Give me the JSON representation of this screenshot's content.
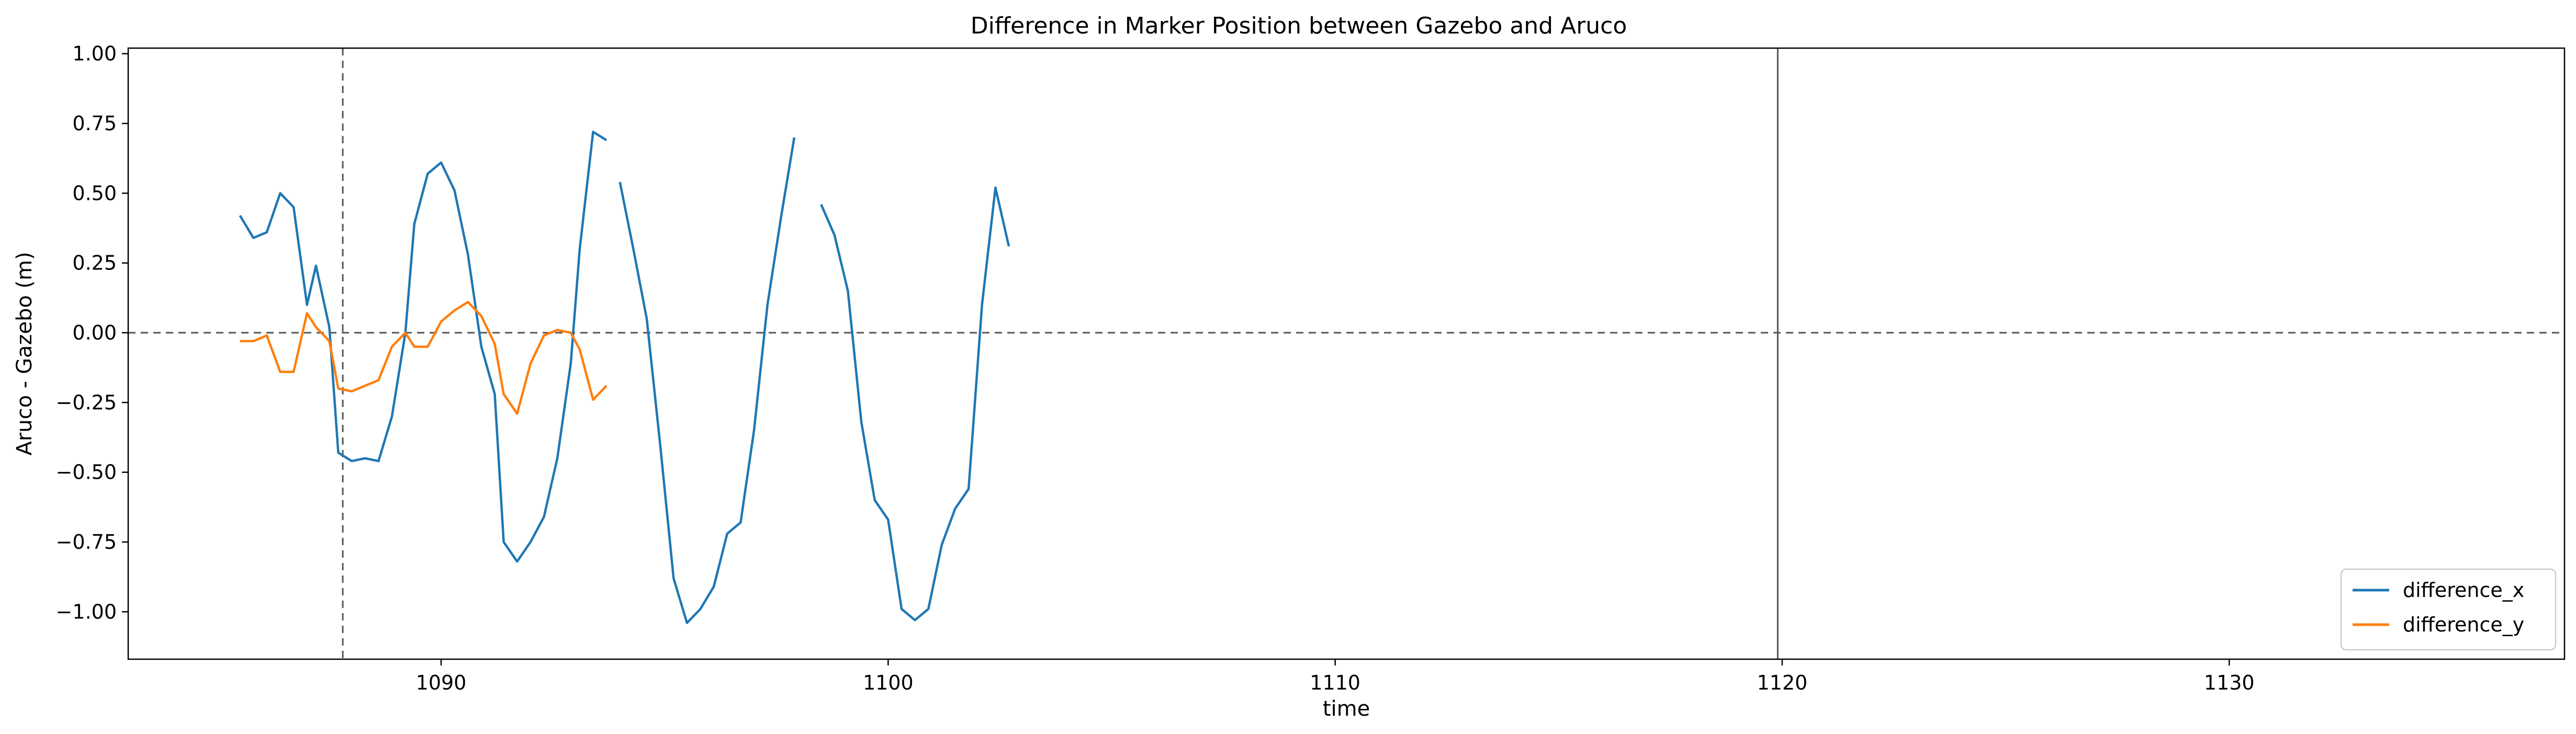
{
  "chart_data": {
    "type": "line",
    "title": "Difference in Marker Position between Gazebo and Aruco",
    "xlabel": "time",
    "ylabel": "Aruco - Gazebo (m)",
    "xlim": [
      1083,
      1137.5
    ],
    "ylim": [
      -1.17,
      1.02
    ],
    "xticks": [
      1090,
      1100,
      1110,
      1120,
      1130
    ],
    "yticks": [
      -1.0,
      -0.75,
      -0.5,
      -0.25,
      0.0,
      0.25,
      0.5,
      0.75,
      1.0
    ],
    "ytick_labels": [
      "−1.00",
      "−0.75",
      "−0.50",
      "−0.25",
      "0.00",
      "0.25",
      "0.50",
      "0.75",
      "1.00"
    ],
    "grid": false,
    "legend_position": "bottom-right",
    "reference_lines": [
      {
        "orientation": "horizontal",
        "value": 0.0,
        "style": "dashed",
        "color": "#555555"
      },
      {
        "orientation": "vertical",
        "value": 1087.8,
        "style": "dashed",
        "color": "#555555"
      },
      {
        "orientation": "vertical",
        "value": 1119.9,
        "style": "solid",
        "color": "#555555"
      }
    ],
    "series": [
      {
        "name": "difference_x",
        "color": "#1f77b4",
        "segments": [
          [
            [
              1085.5,
              0.42
            ],
            [
              1085.8,
              0.34
            ],
            [
              1086.1,
              0.36
            ],
            [
              1086.4,
              0.5
            ],
            [
              1086.7,
              0.45
            ],
            [
              1087.0,
              0.1
            ],
            [
              1087.2,
              0.24
            ],
            [
              1087.5,
              0.02
            ],
            [
              1087.7,
              -0.43
            ],
            [
              1088.0,
              -0.46
            ],
            [
              1088.3,
              -0.45
            ],
            [
              1088.6,
              -0.46
            ],
            [
              1088.9,
              -0.3
            ],
            [
              1089.2,
              0.0
            ],
            [
              1089.4,
              0.39
            ],
            [
              1089.7,
              0.57
            ],
            [
              1090.0,
              0.61
            ],
            [
              1090.3,
              0.51
            ],
            [
              1090.6,
              0.28
            ],
            [
              1090.9,
              -0.05
            ],
            [
              1091.2,
              -0.22
            ],
            [
              1091.4,
              -0.75
            ],
            [
              1091.7,
              -0.82
            ],
            [
              1092.0,
              -0.75
            ],
            [
              1092.3,
              -0.66
            ],
            [
              1092.6,
              -0.45
            ],
            [
              1092.9,
              -0.11
            ],
            [
              1093.1,
              0.3
            ],
            [
              1093.4,
              0.72
            ],
            [
              1093.7,
              0.69
            ]
          ],
          [
            [
              1094.0,
              0.54
            ],
            [
              1094.3,
              0.3
            ],
            [
              1094.6,
              0.05
            ],
            [
              1094.9,
              -0.4
            ],
            [
              1095.2,
              -0.88
            ],
            [
              1095.5,
              -1.04
            ],
            [
              1095.8,
              -0.99
            ],
            [
              1096.1,
              -0.91
            ],
            [
              1096.4,
              -0.72
            ],
            [
              1096.7,
              -0.68
            ],
            [
              1097.0,
              -0.35
            ],
            [
              1097.3,
              0.1
            ],
            [
              1097.6,
              0.41
            ],
            [
              1097.9,
              0.7
            ]
          ],
          [
            [
              1098.5,
              0.46
            ],
            [
              1098.8,
              0.35
            ],
            [
              1099.1,
              0.15
            ],
            [
              1099.4,
              -0.32
            ],
            [
              1099.7,
              -0.6
            ],
            [
              1100.0,
              -0.67
            ],
            [
              1100.3,
              -0.99
            ],
            [
              1100.6,
              -1.03
            ],
            [
              1100.9,
              -0.99
            ],
            [
              1101.2,
              -0.76
            ],
            [
              1101.5,
              -0.63
            ],
            [
              1101.8,
              -0.56
            ],
            [
              1102.1,
              0.1
            ],
            [
              1102.4,
              0.52
            ],
            [
              1102.7,
              0.31
            ]
          ]
        ]
      },
      {
        "name": "difference_y",
        "color": "#ff7f0e",
        "segments": [
          [
            [
              1085.5,
              -0.03
            ],
            [
              1085.8,
              -0.03
            ],
            [
              1086.1,
              -0.01
            ],
            [
              1086.4,
              -0.14
            ],
            [
              1086.7,
              -0.14
            ],
            [
              1087.0,
              0.07
            ],
            [
              1087.2,
              0.02
            ],
            [
              1087.5,
              -0.03
            ],
            [
              1087.7,
              -0.2
            ],
            [
              1088.0,
              -0.21
            ],
            [
              1088.3,
              -0.19
            ],
            [
              1088.6,
              -0.17
            ],
            [
              1088.9,
              -0.05
            ],
            [
              1089.2,
              0.0
            ],
            [
              1089.4,
              -0.05
            ],
            [
              1089.7,
              -0.05
            ],
            [
              1090.0,
              0.04
            ],
            [
              1090.3,
              0.08
            ],
            [
              1090.6,
              0.11
            ],
            [
              1090.9,
              0.06
            ],
            [
              1091.2,
              -0.04
            ],
            [
              1091.4,
              -0.22
            ],
            [
              1091.7,
              -0.29
            ],
            [
              1092.0,
              -0.11
            ],
            [
              1092.3,
              -0.01
            ],
            [
              1092.6,
              0.01
            ],
            [
              1092.9,
              0.0
            ],
            [
              1093.1,
              -0.06
            ],
            [
              1093.4,
              -0.24
            ],
            [
              1093.7,
              -0.19
            ]
          ]
        ]
      }
    ]
  }
}
